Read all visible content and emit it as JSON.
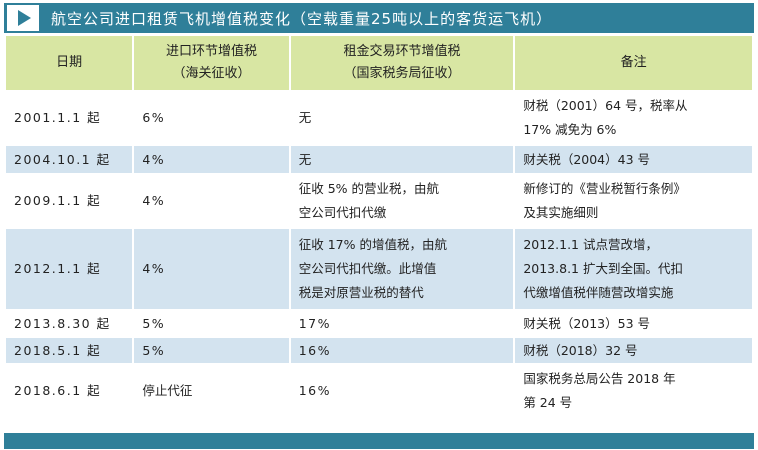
{
  "title": "航空公司进口租赁飞机增值税变化（空载重量25吨以上的客货运飞机）",
  "headers": {
    "date": "日期",
    "import_vat_1": "进口环节增值税",
    "import_vat_2": "（海关征收）",
    "lease_vat_1": "租金交易环节增值税",
    "lease_vat_2": "（国家税务局征收）",
    "notes": "备注"
  },
  "rows": [
    {
      "date": "2001.1.1 起",
      "import": "6%",
      "lease": [
        "无"
      ],
      "notes": [
        "财税（2001）64 号，税率从",
        "17% 减免为 6%"
      ]
    },
    {
      "date": "2004.10.1 起",
      "import": "4%",
      "lease": [
        "无"
      ],
      "notes": [
        "财关税（2004）43 号"
      ]
    },
    {
      "date": "2009.1.1 起",
      "import": "4%",
      "lease": [
        "征收 5% 的营业税，由航",
        "空公司代扣代缴"
      ],
      "notes": [
        "新修订的《营业税暂行条例》",
        "及其实施细则"
      ]
    },
    {
      "date": "2012.1.1 起",
      "import": "4%",
      "lease": [
        "征收 17% 的增值税，由航",
        "空公司代扣代缴。此增值",
        "税是对原营业税的替代"
      ],
      "notes": [
        "2012.1.1 试点营改增，",
        "2013.8.1 扩大到全国。代扣",
        "代缴增值税伴随营改增实施"
      ]
    },
    {
      "date": "2013.8.30 起",
      "import": "5%",
      "lease": [
        "17%"
      ],
      "notes": [
        "财关税（2013）53 号"
      ]
    },
    {
      "date": "2018.5.1 起",
      "import": "5%",
      "lease": [
        "16%"
      ],
      "notes": [
        "财税（2018）32 号"
      ]
    },
    {
      "date": "2018.6.1 起",
      "import": "停止代征",
      "lease": [
        "16%"
      ],
      "notes": [
        "国家税务总局公告 2018 年",
        "第 24 号"
      ]
    }
  ],
  "colors": {
    "title_bar": "#2f7f99",
    "header_bg": "#d8e6a3",
    "row_blue": "#d3e3ef"
  },
  "icons": {
    "title": "play-icon"
  }
}
